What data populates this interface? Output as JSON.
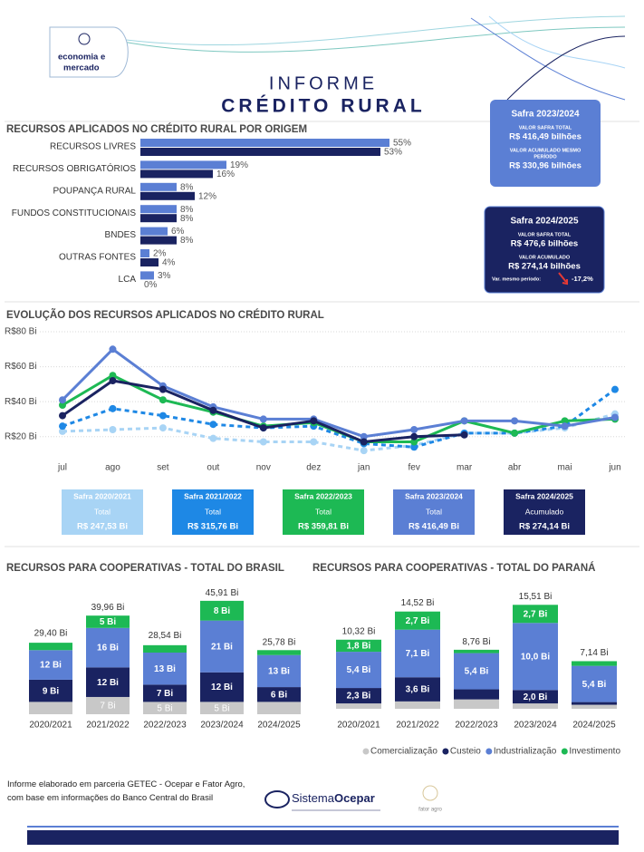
{
  "header": {
    "logo": [
      "economia e",
      "mercado"
    ],
    "title": "INFORME",
    "subtitle": "CRÉDITO RURAL"
  },
  "summary_boxes": [
    {
      "title": "Safra 2023/2024",
      "label1": [
        "VALOR SAFRA TOTAL"
      ],
      "value1": "R$ 416,49 bilhões",
      "label2": [
        "VALOR ACUMULADO MESMO",
        "PERÍODO"
      ],
      "value2": "R$ 330,96 bilhões",
      "color": "#5b7fd4"
    },
    {
      "title": "Safra 2024/2025",
      "label1": [
        "VALOR SAFRA TOTAL"
      ],
      "value1": "R$ 476,6 bilhões",
      "label2": [
        "VALOR ACUMULADO"
      ],
      "value2": "R$ 274,14 bilhões",
      "variation_label": "Var. mesmo período:",
      "variation": "-17,2%",
      "color": "#1a2361"
    }
  ],
  "chart_data": [
    {
      "type": "hbar",
      "title": "RECURSOS APLICADOS NO CRÉDITO RURAL POR ORIGEM",
      "categories": [
        "RECURSOS LIVRES",
        "RECURSOS OBRIGATÓRIOS",
        "POUPANÇA RURAL",
        "FUNDOS CONSTITUCIONAIS",
        "BNDES",
        "OUTRAS FONTES",
        "LCA"
      ],
      "series": [
        {
          "color": "#5b7fd4",
          "values": [
            55,
            19,
            8,
            8,
            6,
            2,
            3
          ],
          "value_labels": [
            "55%",
            "19%",
            "8%",
            "8%",
            "6%",
            "2%",
            "3%"
          ]
        },
        {
          "color": "#1a2361",
          "values": [
            53,
            16,
            12,
            8,
            8,
            4,
            0
          ],
          "value_labels": [
            "53%",
            "16%",
            "12%",
            "8%",
            "8%",
            "4%",
            "0%"
          ]
        }
      ]
    },
    {
      "type": "line",
      "title": "EVOLUÇÃO DOS RECURSOS APLICADOS NO CRÉDITO RURAL",
      "categories": [
        "jul",
        "ago",
        "set",
        "out",
        "nov",
        "dez",
        "jan",
        "fev",
        "mar",
        "abr",
        "mai",
        "jun"
      ],
      "ylim": [
        10,
        80
      ],
      "yticks": [
        {
          "value": 20,
          "label": "R$20 Bi"
        },
        {
          "value": 40,
          "label": "R$40 Bi"
        },
        {
          "value": 60,
          "label": "R$60 Bi"
        },
        {
          "value": 80,
          "label": "R$80 Bi"
        }
      ],
      "grid": true,
      "series": [
        {
          "name": "Safra 2020/2021",
          "sublabel": "Total",
          "total": "R$ 247,53 Bi",
          "color": "#a8d4f5",
          "dashed": true,
          "values": [
            23,
            24,
            25,
            19,
            17,
            17,
            12,
            15,
            22,
            22,
            25,
            33
          ]
        },
        {
          "name": "Safra 2021/2022",
          "sublabel": "Total",
          "total": "R$ 315,76 Bi",
          "color": "#1e88e5",
          "dashed": true,
          "values": [
            26,
            36,
            32,
            27,
            25,
            26,
            16,
            14,
            22,
            22,
            26,
            47
          ]
        },
        {
          "name": "Safra 2022/2023",
          "sublabel": "Total",
          "total": "R$ 359,81 Bi",
          "color": "#1db954",
          "dashed": false,
          "values": [
            38,
            55,
            41,
            34,
            26,
            28,
            17,
            17,
            29,
            22,
            29,
            30
          ]
        },
        {
          "name": "Safra 2023/2024",
          "sublabel": "Total",
          "total": "R$ 416,49 Bi",
          "color": "#5b7fd4",
          "dashed": false,
          "values": [
            41,
            70,
            49,
            37,
            30,
            30,
            20,
            24,
            29,
            29,
            26,
            31
          ]
        },
        {
          "name": "Safra 2024/2025",
          "sublabel": "Acumulado",
          "total": "R$ 274,14 Bi",
          "color": "#1a2361",
          "dashed": false,
          "values": [
            32,
            52,
            47,
            35,
            25,
            29,
            17,
            20,
            21,
            null,
            null,
            null
          ]
        }
      ]
    },
    {
      "type": "stacked_bar",
      "title": "RECURSOS PARA COOPERATIVAS - TOTAL DO BRASIL",
      "categories": [
        "2020/2021",
        "2021/2022",
        "2022/2023",
        "2023/2024",
        "2024/2025"
      ],
      "totals": [
        29.4,
        39.96,
        28.54,
        45.91,
        25.78
      ],
      "total_labels": [
        "29,40 Bi",
        "39,96 Bi",
        "28,54 Bi",
        "45,91 Bi",
        "25,78 Bi"
      ],
      "series": [
        {
          "color": "#c8c8c8",
          "values": [
            5,
            7,
            5,
            5,
            5
          ],
          "value_labels": [
            null,
            "7 Bi",
            "5 Bi",
            "5 Bi",
            null
          ]
        },
        {
          "color": "#1a2361",
          "values": [
            9,
            12,
            7,
            12,
            6
          ],
          "value_labels": [
            "9 Bi",
            "12 Bi",
            "7 Bi",
            "12 Bi",
            "6 Bi"
          ]
        },
        {
          "color": "#5b7fd4",
          "values": [
            12,
            16,
            13,
            21,
            13
          ],
          "value_labels": [
            "12 Bi",
            "16 Bi",
            "13 Bi",
            "21 Bi",
            "13 Bi"
          ]
        },
        {
          "color": "#1db954",
          "values": [
            3,
            5,
            3,
            8,
            2
          ],
          "value_labels": [
            null,
            "5 Bi",
            null,
            "8 Bi",
            null
          ]
        }
      ]
    },
    {
      "type": "stacked_bar",
      "title": "RECURSOS PARA COOPERATIVAS - TOTAL DO PARANÁ",
      "categories": [
        "2020/2021",
        "2021/2022",
        "2022/2023",
        "2023/2024",
        "2024/2025"
      ],
      "totals": [
        10.32,
        14.52,
        8.76,
        15.51,
        7.14
      ],
      "total_labels": [
        "10,32 Bi",
        "14,52 Bi",
        "8,76 Bi",
        "15,51 Bi",
        "7,14 Bi"
      ],
      "series": [
        {
          "name": "Comercialização",
          "color": "#c8c8c8",
          "values": [
            0.8,
            1.1,
            1.4,
            0.8,
            0.6
          ],
          "value_labels": [
            null,
            null,
            null,
            null,
            null
          ]
        },
        {
          "name": "Custeio",
          "color": "#1a2361",
          "values": [
            2.3,
            3.6,
            1.5,
            2.0,
            0.4
          ],
          "value_labels": [
            "2,3 Bi",
            "3,6 Bi",
            null,
            "2,0 Bi",
            null
          ]
        },
        {
          "name": "Industrialização",
          "color": "#5b7fd4",
          "values": [
            5.4,
            7.1,
            5.4,
            10.0,
            5.4
          ],
          "value_labels": [
            "5,4 Bi",
            "7,1 Bi",
            "5,4 Bi",
            "10,0 Bi",
            "5,4 Bi"
          ]
        },
        {
          "name": "Investimento",
          "color": "#1db954",
          "values": [
            1.8,
            2.7,
            0.5,
            2.7,
            0.7
          ],
          "value_labels": [
            "1,8 Bi",
            "2,7 Bi",
            null,
            "2,7 Bi",
            null
          ]
        }
      ],
      "legend": "bottom-right"
    }
  ],
  "footer": {
    "text": "Informe elaborado em parceria GETEC - Ocepar e Fator Agro, com base em informações do Banco Central do Brasil",
    "logo1": [
      "Sistema",
      "Ocepar"
    ],
    "logo2": "fator agro"
  }
}
